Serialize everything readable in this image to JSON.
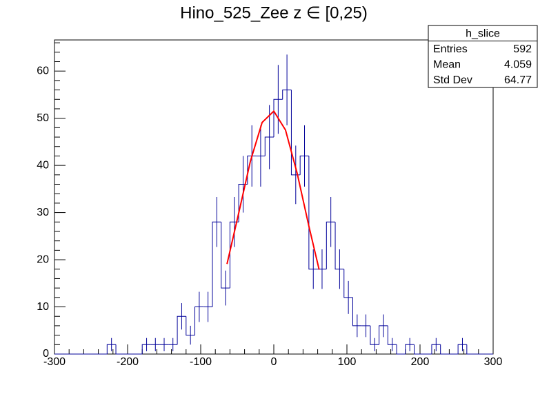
{
  "chart_data": {
    "type": "histogram",
    "title": "Hino_525_Zee z  ∈ [0,25)",
    "bins": [
      -300,
      -288,
      -276,
      -264,
      -252,
      -240,
      -228,
      -216,
      -204,
      -192,
      -180,
      -168,
      -156,
      -144,
      -132,
      -120,
      -108,
      -96,
      -84,
      -72,
      -60,
      -48,
      -36,
      -24,
      -12,
      0,
      12,
      24,
      36,
      48,
      60,
      72,
      84,
      96,
      108,
      120,
      132,
      144,
      156,
      168,
      180,
      192,
      204,
      216,
      228,
      240,
      252,
      264,
      276,
      288,
      300
    ],
    "values": [
      0,
      0,
      0,
      0,
      0,
      0,
      2,
      0,
      0,
      0,
      2,
      2,
      2,
      2,
      8,
      4,
      10,
      10,
      28,
      14,
      28,
      36,
      42,
      42,
      46,
      54,
      56,
      38,
      42,
      18,
      18,
      28,
      18,
      12,
      6,
      6,
      2,
      6,
      2,
      0,
      2,
      0,
      0,
      2,
      0,
      0,
      2,
      0,
      0,
      0
    ],
    "errors": [
      0,
      0,
      0,
      0,
      0,
      0,
      1.4,
      0,
      0,
      0,
      1.4,
      1.4,
      1.4,
      1.4,
      2.8,
      2,
      3.2,
      3.2,
      5.3,
      3.7,
      5.3,
      6,
      6.5,
      6.5,
      6.8,
      7.3,
      7.5,
      6.2,
      6.5,
      4.2,
      4.2,
      5.3,
      4.2,
      3.5,
      2.4,
      2.4,
      1.4,
      2.4,
      1.4,
      0,
      1.4,
      0,
      0,
      1.4,
      0,
      0,
      1.4,
      0,
      0,
      0
    ],
    "color": "#000099",
    "fit": {
      "x": [
        -64,
        -48,
        -32,
        -16,
        0,
        16,
        32,
        48,
        62
      ],
      "y": [
        19.1,
        29.9,
        40.9,
        49.1,
        51.5,
        47.5,
        38.3,
        27.1,
        17.9
      ],
      "color": "#ff0000"
    },
    "xlim": [
      -300,
      300
    ],
    "xticks": [
      -300,
      -200,
      -100,
      0,
      100,
      200,
      300
    ],
    "ylim": [
      0,
      66.6
    ],
    "yticks": [
      0,
      10,
      20,
      30,
      40,
      50,
      60
    ],
    "stats": {
      "title": "h_slice",
      "rows": [
        [
          "Entries",
          592
        ],
        [
          "Mean",
          4.059
        ],
        [
          "Std Dev",
          64.77
        ]
      ]
    }
  }
}
